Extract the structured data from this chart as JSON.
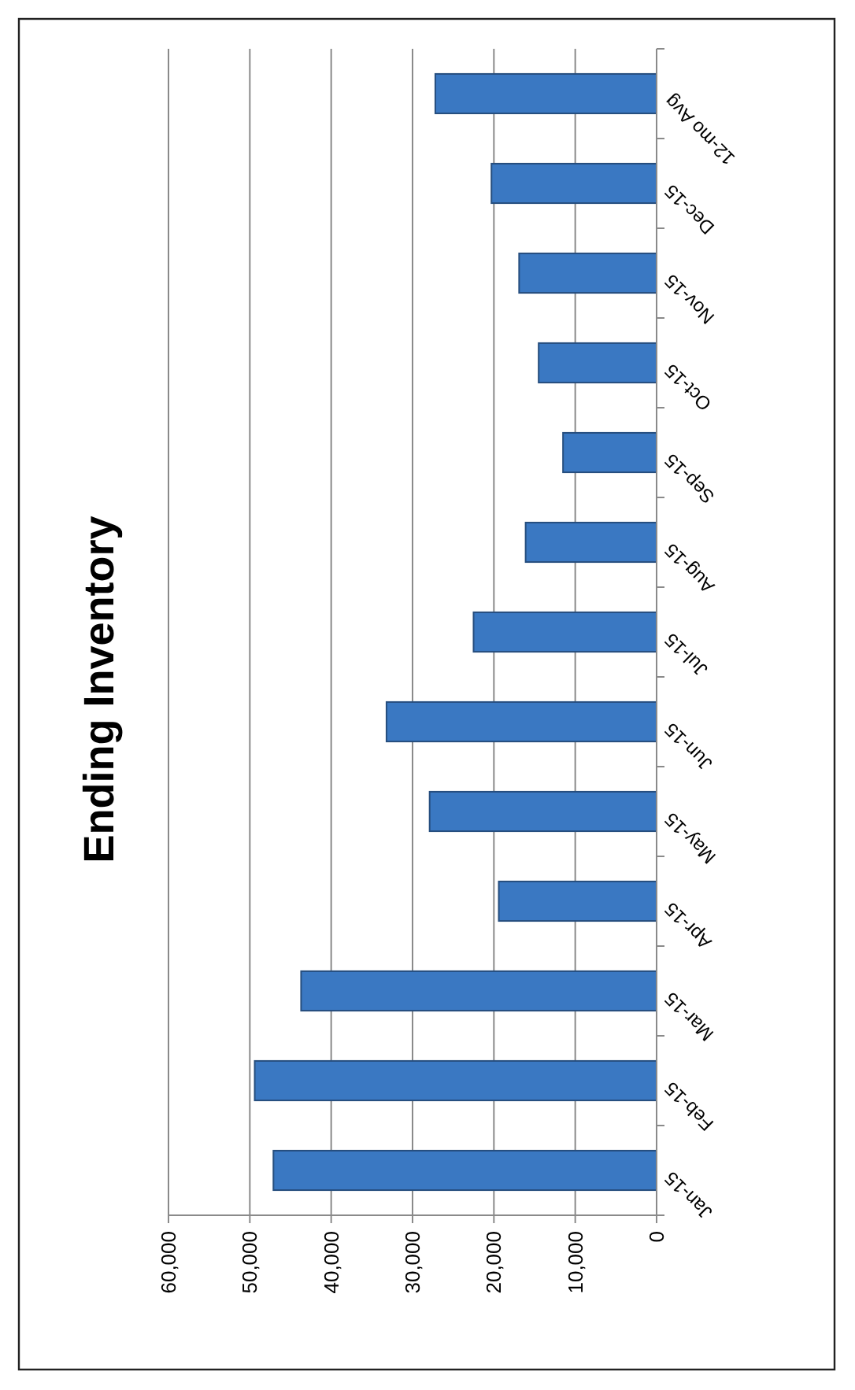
{
  "chart_data": {
    "type": "bar",
    "title": "Ending Inventory",
    "orientation": "horizontal",
    "categories": [
      "12-mo Avg",
      "Dec-15",
      "Nov-15",
      "Oct-15",
      "Sep-15",
      "Aug-15",
      "Jul-15",
      "Jun-15",
      "May-15",
      "Apr-15",
      "Mar-15",
      "Feb-15",
      "Jan-15"
    ],
    "values": [
      27200,
      20300,
      16900,
      14500,
      11500,
      16100,
      22500,
      33200,
      27900,
      19400,
      43700,
      49400,
      47100
    ],
    "color": "#3a78c2",
    "xlim": [
      60000,
      0
    ],
    "xticks": [
      {
        "value": 60000,
        "label": "60,000"
      },
      {
        "value": 50000,
        "label": "50,000"
      },
      {
        "value": 40000,
        "label": "40,000"
      },
      {
        "value": 30000,
        "label": "30,000"
      },
      {
        "value": 20000,
        "label": "20,000"
      },
      {
        "value": 10000,
        "label": "10,000"
      },
      {
        "value": 0,
        "label": "0"
      }
    ],
    "grid": "x"
  }
}
